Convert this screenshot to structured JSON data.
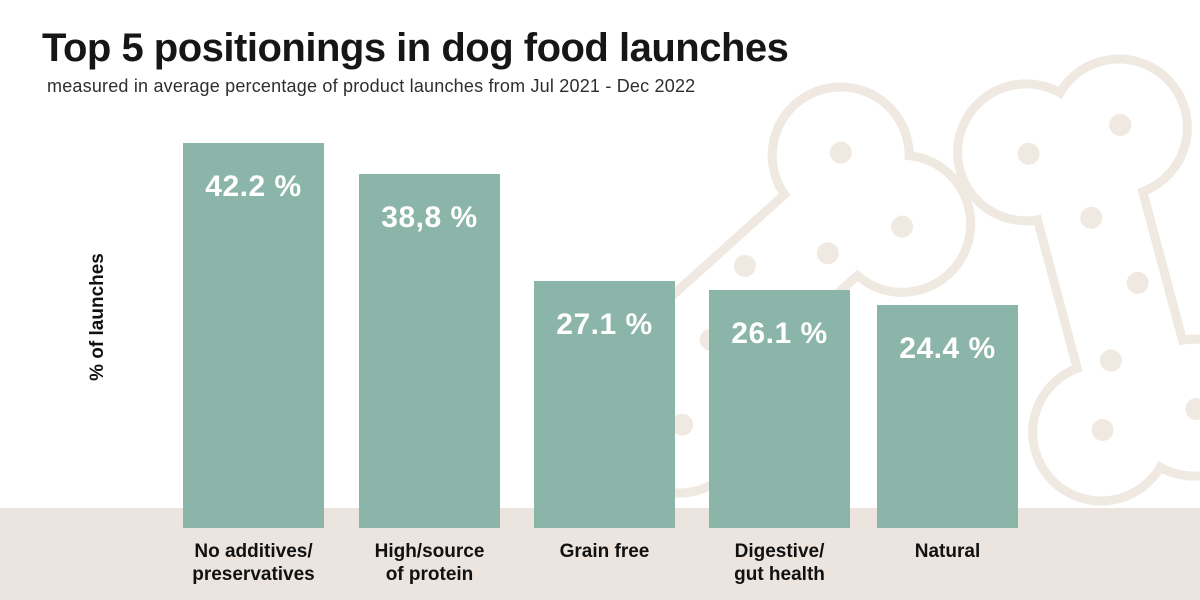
{
  "chart_data": {
    "type": "bar",
    "title": "Top 5 positionings in dog food launches",
    "subtitle": "measured in average percentage of product launches from Jul 2021 - Dec 2022",
    "ylabel": "% of launches",
    "xlabel": "",
    "categories": [
      "No additives/\npreservatives",
      "High/source\nof protein",
      "Grain free",
      "Digestive/\ngut health",
      "Natural"
    ],
    "values": [
      42.2,
      38.8,
      27.1,
      26.1,
      24.4
    ],
    "value_labels": [
      "42.2 %",
      "38,8 %",
      "27.1 %",
      "26.1 %",
      "24.4 %"
    ],
    "ylim": [
      0,
      45
    ],
    "grid": false,
    "legend": "none",
    "bar_color": "#8bb5a9",
    "value_label_color": "#ffffff"
  },
  "decor": {
    "bone_color": "#f0e9e1",
    "strip_color": "#ece4de",
    "background_icons": [
      "dog-bone-icon",
      "dog-bone-icon"
    ]
  }
}
